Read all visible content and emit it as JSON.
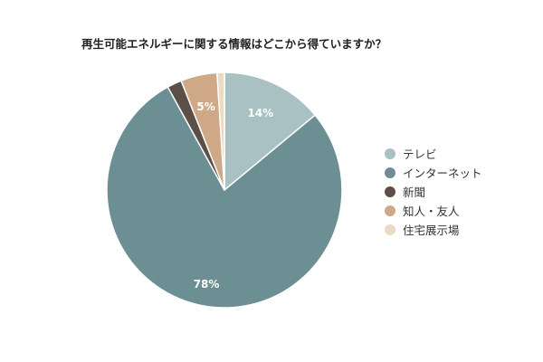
{
  "chart_data": {
    "type": "pie",
    "title": "再生可能エネルギーに関する情報はどこから得ていますか？",
    "legend_position": "right",
    "categories": [
      "テレビ",
      "インターネット",
      "新聞",
      "知人・友人",
      "住宅展示場"
    ],
    "values": [
      14,
      78,
      2,
      5,
      1
    ],
    "data_labels": [
      "14%",
      "78%",
      "",
      "5%",
      ""
    ],
    "colors": [
      "#a9c1c2",
      "#6c8f94",
      "#5b4f48",
      "#cfa987",
      "#eadbc3"
    ]
  }
}
